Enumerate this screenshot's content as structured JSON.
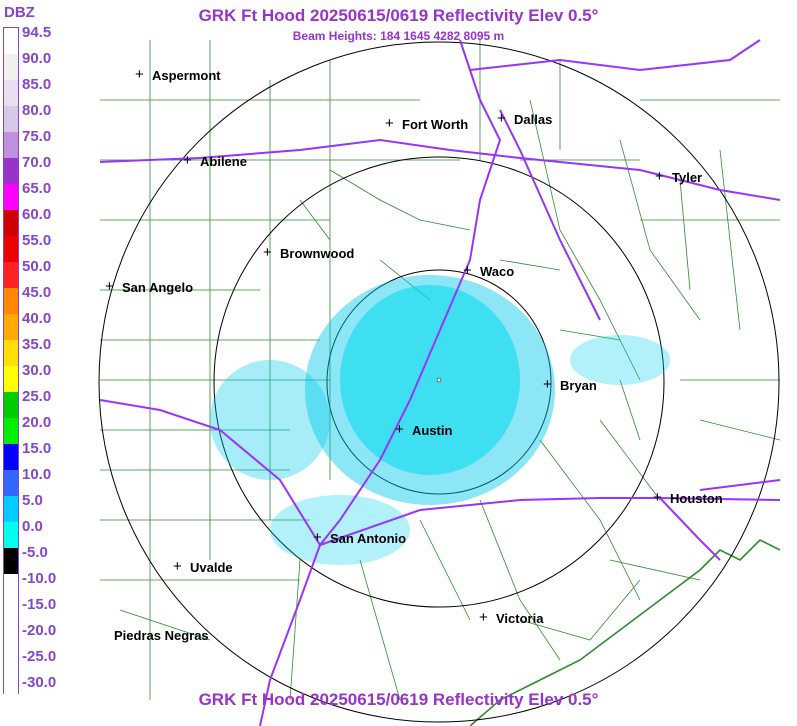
{
  "title": "GRK Ft Hood 20250615/0619 Reflectivity Elev 0.5°",
  "subtitle": "Beam Heights: 184 1645 4282 8095 m",
  "legend": {
    "unit": "DBZ",
    "ticks": [
      "94.5",
      "90.0",
      "85.0",
      "80.0",
      "75.0",
      "70.0",
      "65.0",
      "60.0",
      "55.0",
      "50.0",
      "45.0",
      "40.0",
      "35.0",
      "30.0",
      "25.0",
      "20.0",
      "15.0",
      "10.0",
      "5.0",
      "0.0",
      "-5.0",
      "-10.0",
      "-15.0",
      "-20.0",
      "-25.0",
      "-30.0"
    ],
    "colors": [
      "#ffffff",
      "#f0f0f0",
      "#e8e0f0",
      "#d8c8e8",
      "#c090e0",
      "#9933cc",
      "#ff00ff",
      "#cc0000",
      "#ee0000",
      "#ff2222",
      "#ff8800",
      "#ffaa00",
      "#ffe000",
      "#ffff00",
      "#00cc00",
      "#00ee00",
      "#0000ff",
      "#3366ff",
      "#00ccff",
      "#00ffee",
      "#000000",
      "#ffffff",
      "#ffffff",
      "#ffffff",
      "#ffffff",
      "#ffffff"
    ]
  },
  "cities": [
    {
      "name": "Aspermont"
    },
    {
      "name": "Abilene"
    },
    {
      "name": "Fort Worth"
    },
    {
      "name": "Dallas"
    },
    {
      "name": "Tyler"
    },
    {
      "name": "Brownwood"
    },
    {
      "name": "Waco"
    },
    {
      "name": "San Angelo"
    },
    {
      "name": "Bryan"
    },
    {
      "name": "Austin"
    },
    {
      "name": "Houston"
    },
    {
      "name": "San Antonio"
    },
    {
      "name": "Uvalde"
    },
    {
      "name": "Victoria"
    },
    {
      "name": "Piedras Negras"
    }
  ]
}
